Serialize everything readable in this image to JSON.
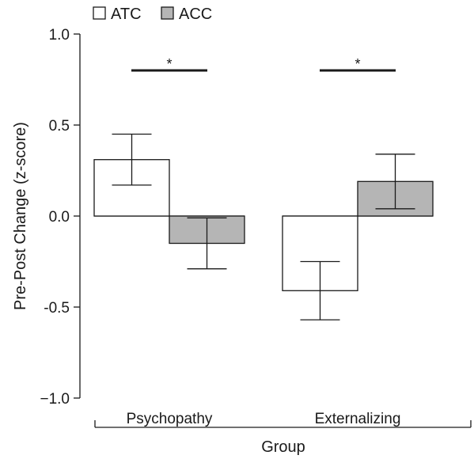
{
  "chart_data": {
    "type": "bar",
    "categories": [
      "Psychopathy",
      "Externalizing"
    ],
    "series": [
      {
        "name": "ATC",
        "values": [
          0.31,
          -0.41
        ],
        "err_low": [
          0.17,
          -0.57
        ],
        "err_high": [
          0.45,
          -0.25
        ],
        "color": "#ffffff"
      },
      {
        "name": "ACC",
        "values": [
          -0.15,
          0.19
        ],
        "err_low": [
          -0.29,
          0.04
        ],
        "err_high": [
          -0.01,
          0.34
        ],
        "color": "#b5b5b5"
      }
    ],
    "xlabel": "Group",
    "ylabel": "Pre-Post Change (z-score)",
    "ylim": [
      -1.0,
      1.0
    ],
    "yticks": [
      "1.0",
      "0.5",
      "0.0",
      "-0.5",
      "−1.0"
    ],
    "ytick_values": [
      1.0,
      0.5,
      0.0,
      -0.5,
      -1.0
    ],
    "significance": [
      "*",
      "*"
    ],
    "legend_position": "top-left",
    "grid": false
  }
}
